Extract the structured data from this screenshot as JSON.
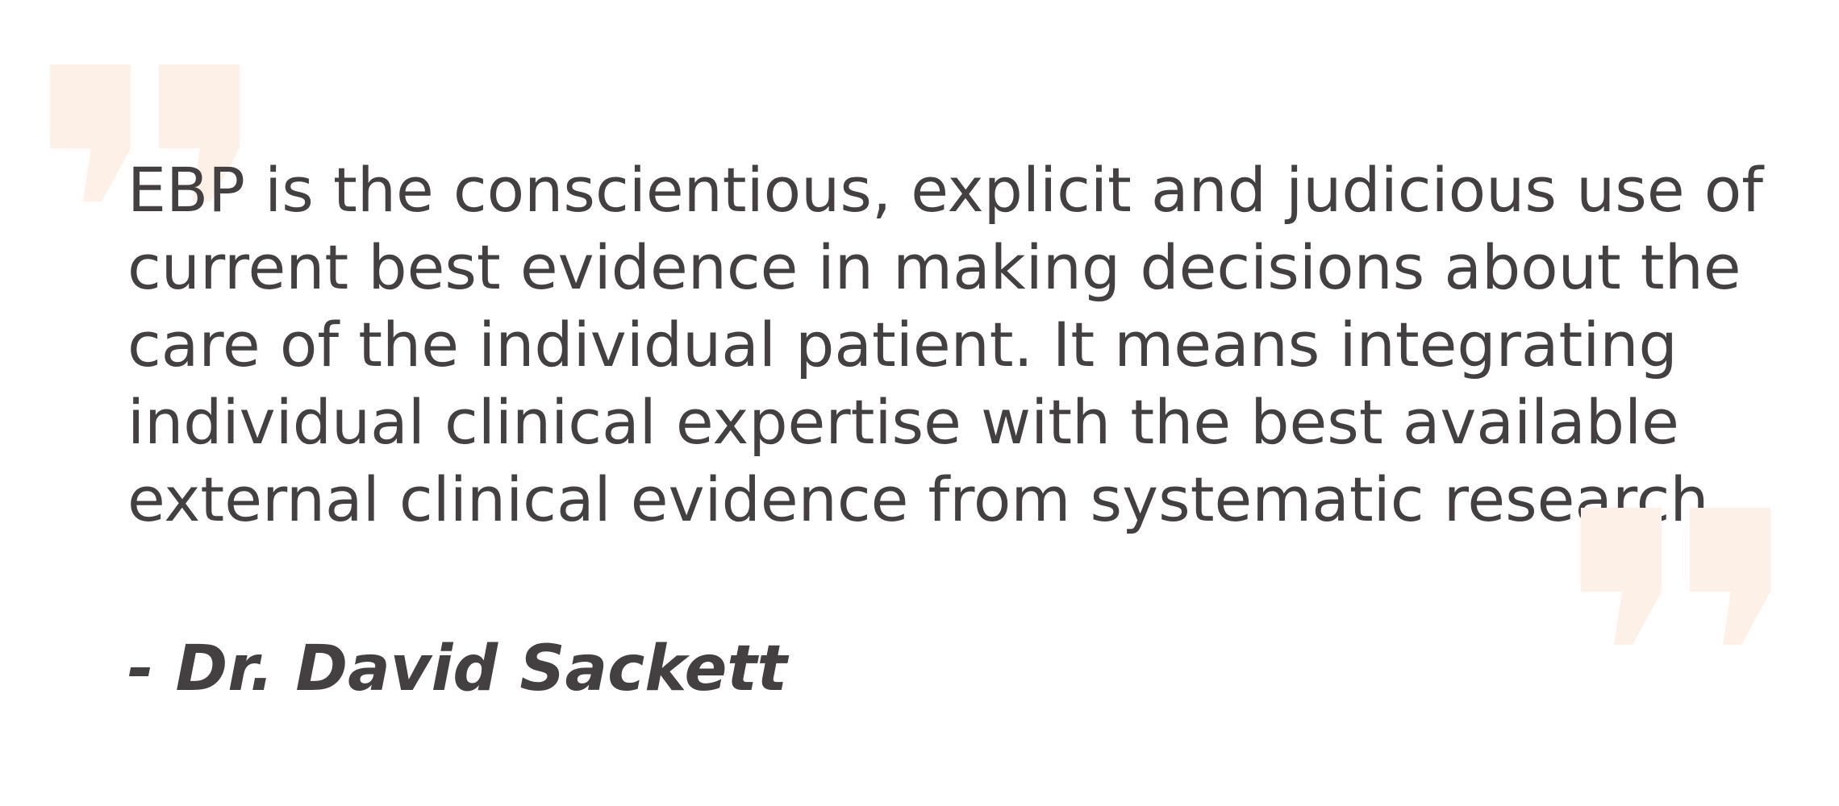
{
  "quote": {
    "lines": [
      "EBP is the conscientious, explicit and judicious use of",
      "current best evidence in making decisions about the",
      "care of the individual patient. It means integrating",
      "individual clinical expertise with the best available",
      "external clinical evidence from systematic research."
    ],
    "author": "- Dr. David Sackett"
  },
  "icons": {
    "open_quote": "open-quote-icon",
    "close_quote": "close-quote-icon"
  },
  "colors": {
    "text": "#443f40",
    "quote_mark": "#fdf0e6",
    "background": "#ffffff"
  }
}
